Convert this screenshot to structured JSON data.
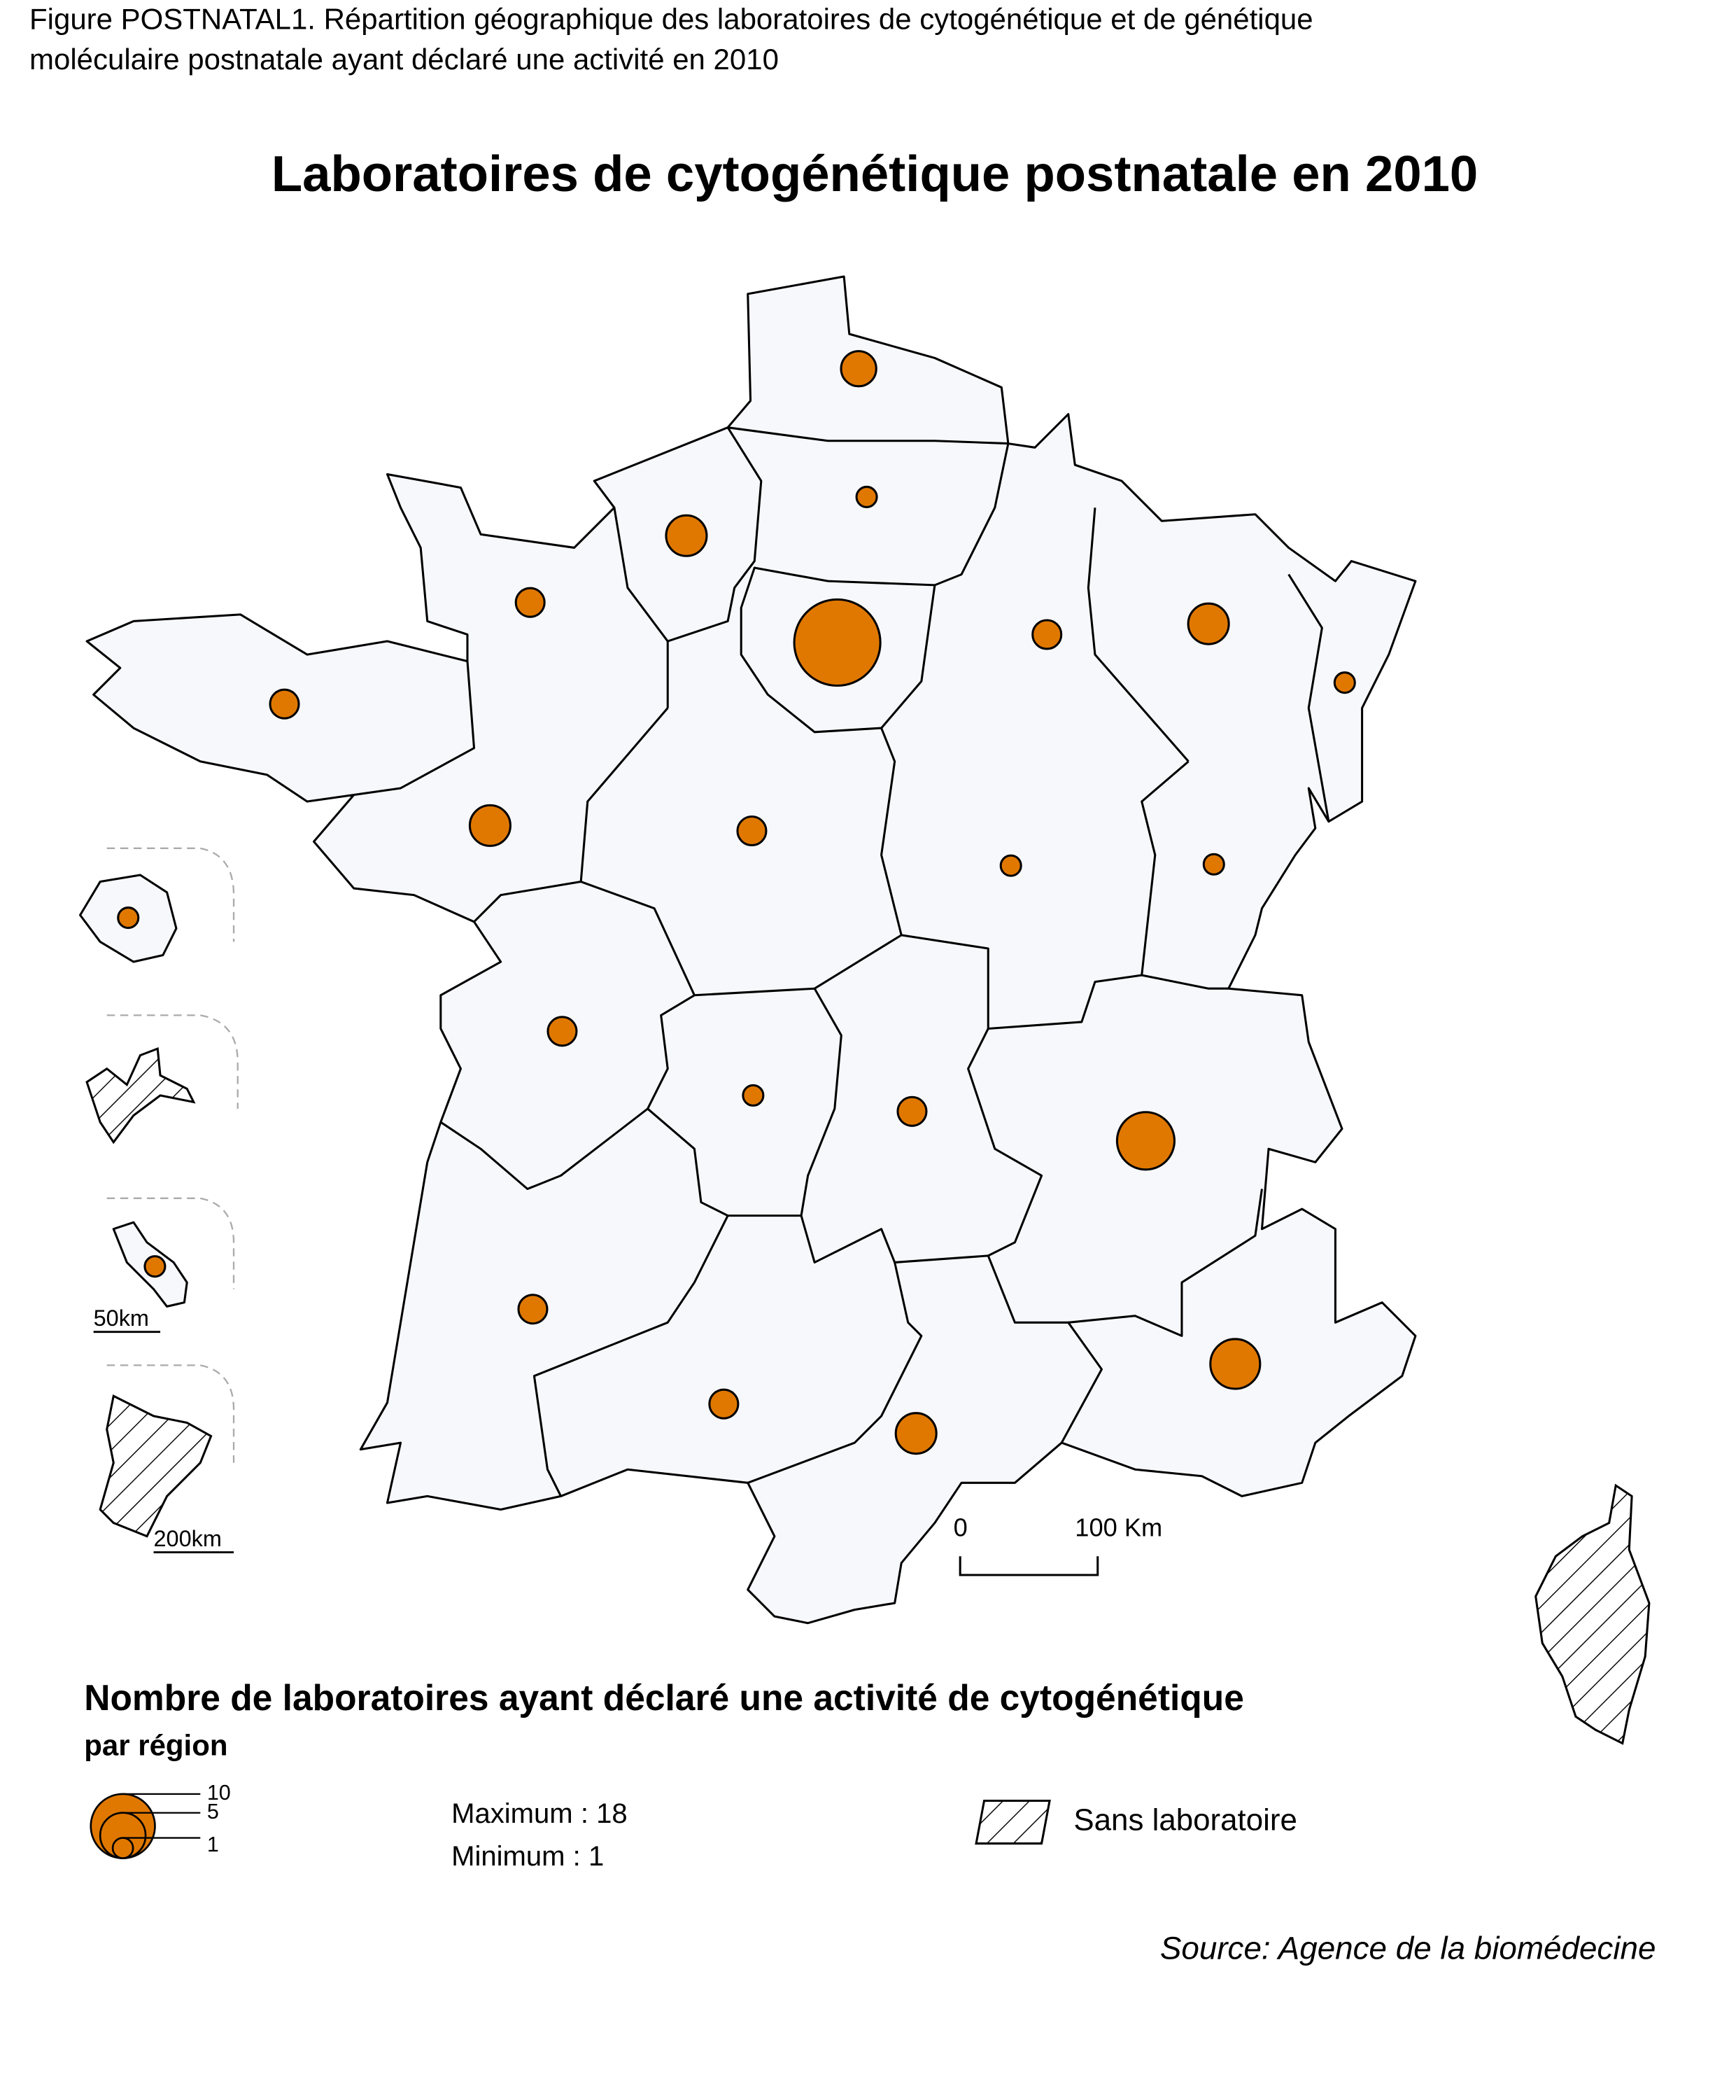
{
  "caption": [
    "Figure POSTNATAL1. Répartition géographique des laboratoires de cytogénétique et de génétique",
    "moléculaire postnatale ayant déclaré une activité en 2010"
  ],
  "chart_data": {
    "type": "map",
    "title": "Laboratoires de cytogénétique postnatale en 2010",
    "values": [
      3,
      1,
      4,
      2,
      18,
      2,
      4,
      1,
      2,
      4,
      2,
      1,
      1,
      1,
      2,
      1,
      2,
      8,
      2,
      1,
      2,
      4,
      6
    ],
    "color": "#e07800",
    "legend_title": "Nombre de laboratoires ayant déclaré une activité de cytogénétique",
    "legend_subtitle": "par région",
    "legend_sizes": [
      10,
      5,
      1
    ],
    "stats": [
      "Maximum : 18",
      "Minimum :  1"
    ],
    "hatch_label": "Sans laboratoire",
    "scale_labels": [
      "0",
      "100 Km"
    ],
    "inset_scale_labels": [
      "50km",
      "200km"
    ],
    "source": "Source: Agence de la biomédecine"
  }
}
